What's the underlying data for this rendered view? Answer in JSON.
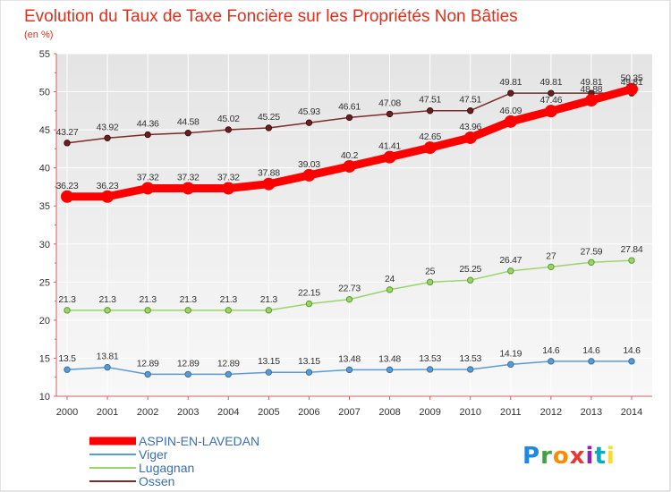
{
  "chart_data": {
    "type": "line",
    "title": "Evolution du Taux de Taxe Foncière sur les Propriétés Non Bâties",
    "ylabel": "(en %)",
    "xlabel": "",
    "ylim": [
      10,
      55
    ],
    "yticks": [
      10,
      15,
      20,
      25,
      30,
      35,
      40,
      45,
      50,
      55
    ],
    "categories": [
      "2000",
      "2001",
      "2002",
      "2003",
      "2004",
      "2005",
      "2006",
      "2007",
      "2008",
      "2009",
      "2010",
      "2011",
      "2012",
      "2013",
      "2014"
    ],
    "grid": true,
    "legend_position": "bottom-left",
    "series": [
      {
        "name": "ASPIN-EN-LAVEDAN",
        "color": "#ff0000",
        "values": [
          36.23,
          36.23,
          37.32,
          37.32,
          37.32,
          37.88,
          39.03,
          40.2,
          41.41,
          42.65,
          43.96,
          46.09,
          47.46,
          48.88,
          50.35
        ],
        "labels": [
          "36.23",
          "36.23",
          "37.32",
          "37.32",
          "37.32",
          "37.88",
          "39.03",
          "40.2",
          "41.41",
          "42.65",
          "43.96",
          "46.09",
          "47.46",
          "48.88",
          "50.35"
        ]
      },
      {
        "name": "Viger",
        "color": "#5b9bd5",
        "values": [
          13.5,
          13.81,
          12.89,
          12.89,
          12.89,
          13.15,
          13.15,
          13.48,
          13.48,
          13.53,
          13.53,
          14.19,
          14.6,
          14.6,
          14.6
        ],
        "labels": [
          "13.5",
          "13.81",
          "12.89",
          "12.89",
          "12.89",
          "13.15",
          "13.15",
          "13.48",
          "13.48",
          "13.53",
          "13.53",
          "14.19",
          "14.6",
          "14.6",
          "14.6"
        ]
      },
      {
        "name": "Lugagnan",
        "color": "#9bd46a",
        "values": [
          21.3,
          21.3,
          21.3,
          21.3,
          21.3,
          21.3,
          22.15,
          22.73,
          24,
          25,
          25.25,
          26.47,
          27,
          27.59,
          27.84
        ],
        "labels": [
          "21.3",
          "21.3",
          "21.3",
          "21.3",
          "21.3",
          "21.3",
          "22.15",
          "22.73",
          "24",
          "25",
          "25.25",
          "26.47",
          "27",
          "27.59",
          "27.84"
        ]
      },
      {
        "name": "Ossen",
        "color": "#7b2b2b",
        "values": [
          43.27,
          43.92,
          44.36,
          44.58,
          45.02,
          45.25,
          45.93,
          46.61,
          47.08,
          47.51,
          47.51,
          49.81,
          49.81,
          49.81,
          49.81
        ],
        "labels": [
          "43.27",
          "43.92",
          "44.36",
          "44.58",
          "45.02",
          "45.25",
          "45.93",
          "46.61",
          "47.08",
          "47.51",
          "47.51",
          "49.81",
          "49.81",
          "49.81",
          "49.81"
        ]
      }
    ]
  },
  "branding": {
    "logo_text": "Proxiti"
  }
}
